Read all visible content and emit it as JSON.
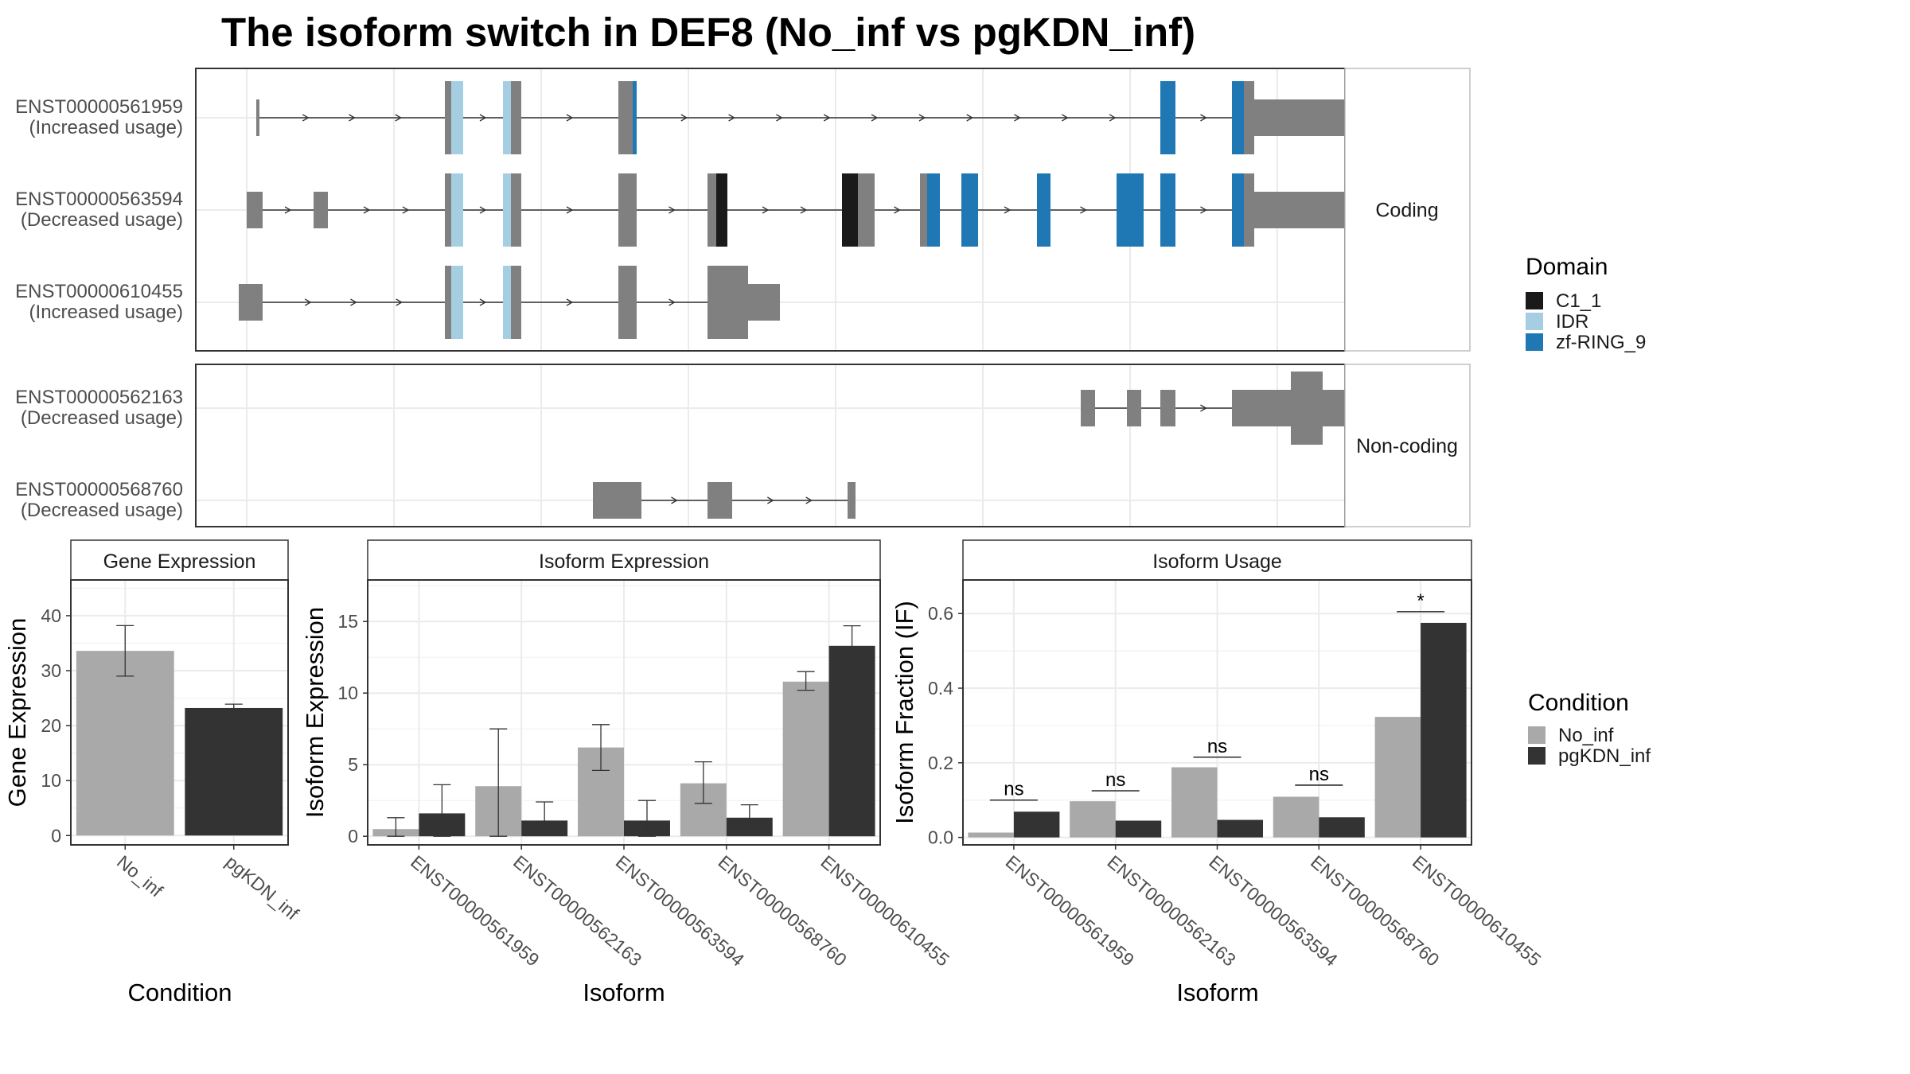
{
  "title": "The isoform switch in DEF8 (No_inf vs pgKDN_inf)",
  "colors": {
    "exon": "#808080",
    "C1_1": "#1a1a1a",
    "IDR": "#a6cee3",
    "zf-RING_9": "#1f78b4",
    "No_inf": "#a9a9a9",
    "pgKDN_inf": "#333333"
  },
  "structure": {
    "coding_label": "Coding",
    "noncoding_label": "Non-coding",
    "coding": [
      {
        "id": "ENST00000561959",
        "status": "(Increased usage)",
        "exons": [
          {
            "s": 2,
            "e": 6,
            "size": "small"
          },
          {
            "s": 239,
            "e": 262,
            "size": "large",
            "domains": [
              {
                "s": 247,
                "e": 262,
                "d": "IDR"
              }
            ]
          },
          {
            "s": 312,
            "e": 335,
            "size": "large",
            "domains": [
              {
                "s": 312,
                "e": 322,
                "d": "IDR"
              }
            ]
          },
          {
            "s": 457,
            "e": 480,
            "size": "large",
            "domains": [
              {
                "s": 475,
                "e": 480,
                "d": "zf-RING_9"
              }
            ]
          },
          {
            "s": 1138,
            "e": 1157,
            "size": "large",
            "domains": [
              {
                "s": 1138,
                "e": 1157,
                "d": "zf-RING_9"
              }
            ]
          },
          {
            "s": 1228,
            "e": 1256,
            "size": "large",
            "domains": [
              {
                "s": 1228,
                "e": 1243,
                "d": "zf-RING_9"
              }
            ]
          },
          {
            "s": 1256,
            "e": 1420,
            "size": "utr"
          }
        ]
      },
      {
        "id": "ENST00000563594",
        "status": "(Decreased usage)",
        "exons": [
          {
            "s": -10,
            "e": 10,
            "size": "small"
          },
          {
            "s": 74,
            "e": 92,
            "size": "small"
          },
          {
            "s": 239,
            "e": 262,
            "size": "large",
            "domains": [
              {
                "s": 247,
                "e": 262,
                "d": "IDR"
              }
            ]
          },
          {
            "s": 312,
            "e": 335,
            "size": "large",
            "domains": [
              {
                "s": 312,
                "e": 322,
                "d": "IDR"
              }
            ]
          },
          {
            "s": 457,
            "e": 480,
            "size": "large"
          },
          {
            "s": 569,
            "e": 594,
            "size": "large",
            "domains": [
              {
                "s": 580,
                "e": 594,
                "d": "C1_1"
              }
            ]
          },
          {
            "s": 738,
            "e": 779,
            "size": "large",
            "domains": [
              {
                "s": 738,
                "e": 758,
                "d": "C1_1"
              }
            ]
          },
          {
            "s": 836,
            "e": 861,
            "size": "large",
            "domains": [
              {
                "s": 845,
                "e": 861,
                "d": "zf-RING_9"
              }
            ]
          },
          {
            "s": 888,
            "e": 909,
            "size": "large",
            "domains": [
              {
                "s": 888,
                "e": 909,
                "d": "zf-RING_9"
              }
            ]
          },
          {
            "s": 983,
            "e": 1000,
            "size": "large",
            "domains": [
              {
                "s": 983,
                "e": 1000,
                "d": "zf-RING_9"
              }
            ]
          },
          {
            "s": 1083,
            "e": 1117,
            "size": "large",
            "domains": [
              {
                "s": 1083,
                "e": 1117,
                "d": "zf-RING_9"
              }
            ]
          },
          {
            "s": 1138,
            "e": 1157,
            "size": "large",
            "domains": [
              {
                "s": 1138,
                "e": 1157,
                "d": "zf-RING_9"
              }
            ]
          },
          {
            "s": 1228,
            "e": 1256,
            "size": "large",
            "domains": [
              {
                "s": 1228,
                "e": 1243,
                "d": "zf-RING_9"
              }
            ]
          },
          {
            "s": 1256,
            "e": 1420,
            "size": "utr"
          }
        ]
      },
      {
        "id": "ENST00000610455",
        "status": "(Increased usage)",
        "exons": [
          {
            "s": -20,
            "e": 10,
            "size": "small"
          },
          {
            "s": 239,
            "e": 262,
            "size": "large",
            "domains": [
              {
                "s": 247,
                "e": 262,
                "d": "IDR"
              }
            ]
          },
          {
            "s": 312,
            "e": 335,
            "size": "large",
            "domains": [
              {
                "s": 312,
                "e": 322,
                "d": "IDR"
              }
            ]
          },
          {
            "s": 457,
            "e": 480,
            "size": "large"
          },
          {
            "s": 569,
            "e": 620,
            "size": "large"
          },
          {
            "s": 569,
            "e": 660,
            "size": "small"
          }
        ]
      }
    ],
    "noncoding": [
      {
        "id": "ENST00000562163",
        "status": "(Decreased usage)",
        "exons": [
          {
            "s": 1038,
            "e": 1056,
            "size": "small"
          },
          {
            "s": 1096,
            "e": 1114,
            "size": "small"
          },
          {
            "s": 1138,
            "e": 1157,
            "size": "small"
          },
          {
            "s": 1228,
            "e": 1420,
            "size": "small"
          },
          {
            "s": 1302,
            "e": 1342,
            "size": "large"
          }
        ]
      },
      {
        "id": "ENST00000568760",
        "status": "(Decreased usage)",
        "exons": [
          {
            "s": 425,
            "e": 486,
            "size": "small"
          },
          {
            "s": 569,
            "e": 600,
            "size": "small"
          },
          {
            "s": 745,
            "e": 755,
            "size": "small"
          }
        ]
      }
    ]
  },
  "domain_legend": {
    "title": "Domain",
    "items": [
      "C1_1",
      "IDR",
      "zf-RING_9"
    ]
  },
  "condition_legend": {
    "title": "Condition",
    "items": [
      "No_inf",
      "pgKDN_inf"
    ]
  },
  "chart_data": [
    {
      "type": "bar",
      "title": "Gene Expression",
      "xlabel": "Condition",
      "ylabel": "Gene Expression",
      "categories": [
        "No_inf",
        "pgKDN_inf"
      ],
      "values": [
        33.6,
        23.2
      ],
      "err_low": [
        29.0,
        22.6
      ],
      "err_high": [
        38.2,
        23.9
      ],
      "ylim": [
        -1.7,
        46.5
      ],
      "yticks": [
        0,
        10,
        20,
        30,
        40
      ]
    },
    {
      "type": "bar",
      "title": "Isoform Expression",
      "xlabel": "Isoform",
      "ylabel": "Isoform Expression",
      "categories": [
        "ENST00000561959",
        "ENST00000562163",
        "ENST00000563594",
        "ENST00000568760",
        "ENST00000610455"
      ],
      "series": [
        {
          "name": "No_inf",
          "values": [
            0.5,
            3.5,
            6.2,
            3.7,
            10.8
          ],
          "err_low": [
            0.0,
            0.0,
            4.6,
            2.3,
            10.2
          ],
          "err_high": [
            1.3,
            7.5,
            7.8,
            5.2,
            11.5
          ]
        },
        {
          "name": "pgKDN_inf",
          "values": [
            1.6,
            1.1,
            1.1,
            1.3,
            13.3
          ],
          "err_low": [
            0.0,
            0.1,
            0.0,
            0.5,
            12.1
          ],
          "err_high": [
            3.6,
            2.4,
            2.5,
            2.2,
            14.7
          ]
        }
      ],
      "ylim": [
        -0.6,
        17.9
      ],
      "yticks": [
        0,
        5,
        10,
        15
      ]
    },
    {
      "type": "bar",
      "title": "Isoform Usage",
      "xlabel": "Isoform",
      "ylabel": "Isoform Fraction (IF)",
      "categories": [
        "ENST00000561959",
        "ENST00000562163",
        "ENST00000563594",
        "ENST00000568760",
        "ENST00000610455"
      ],
      "series": [
        {
          "name": "No_inf",
          "values": [
            0.013,
            0.097,
            0.188,
            0.109,
            0.323
          ]
        },
        {
          "name": "pgKDN_inf",
          "values": [
            0.069,
            0.045,
            0.047,
            0.054,
            0.575
          ]
        }
      ],
      "significance": [
        "ns",
        "ns",
        "ns",
        "ns",
        "*"
      ],
      "sig_y": [
        0.1,
        0.125,
        0.215,
        0.14,
        0.605
      ],
      "ylim": [
        -0.02,
        0.69
      ],
      "yticks": [
        0.0,
        0.2,
        0.4,
        0.6
      ],
      "ytick_labels": [
        "0.0",
        "0.2",
        "0.4",
        "0.6"
      ]
    }
  ]
}
